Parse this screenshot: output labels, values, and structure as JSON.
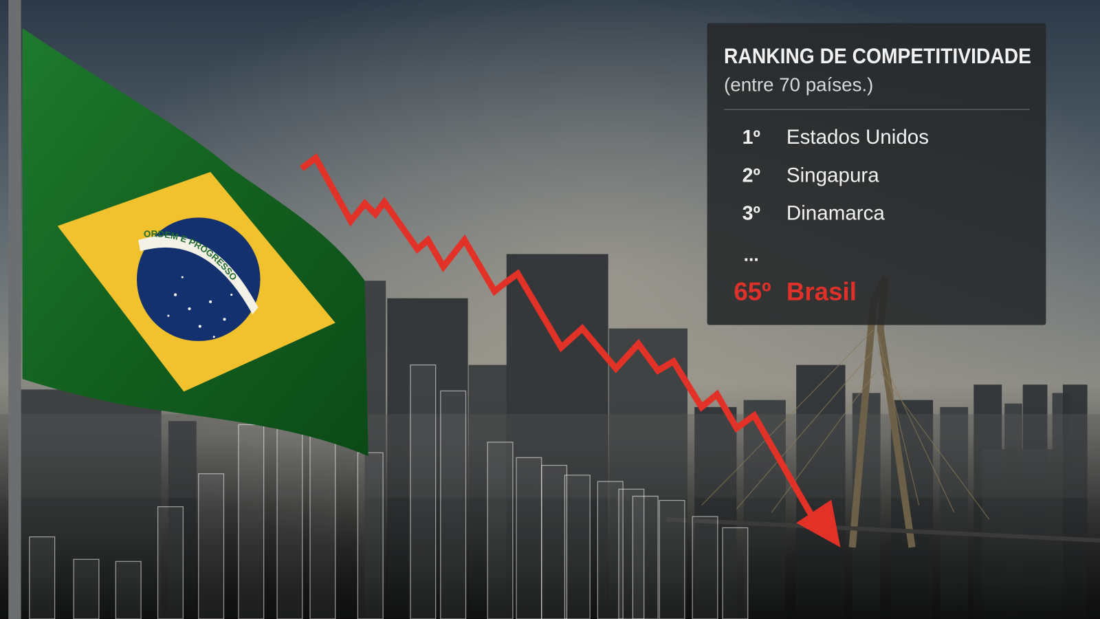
{
  "panel": {
    "title": "RANKING DE COMPETITIVIDADE",
    "subtitle": "(entre 70 países.)",
    "rows": [
      {
        "rank": "1º",
        "country": "Estados Unidos"
      },
      {
        "rank": "2º",
        "country": "Singapura"
      },
      {
        "rank": "3º",
        "country": "Dinamarca"
      }
    ],
    "ellipsis": "...",
    "highlight": {
      "rank": "65º",
      "country": "Brasil"
    }
  },
  "flag": {
    "motto": "ORDEM E PROGRESSO"
  }
}
